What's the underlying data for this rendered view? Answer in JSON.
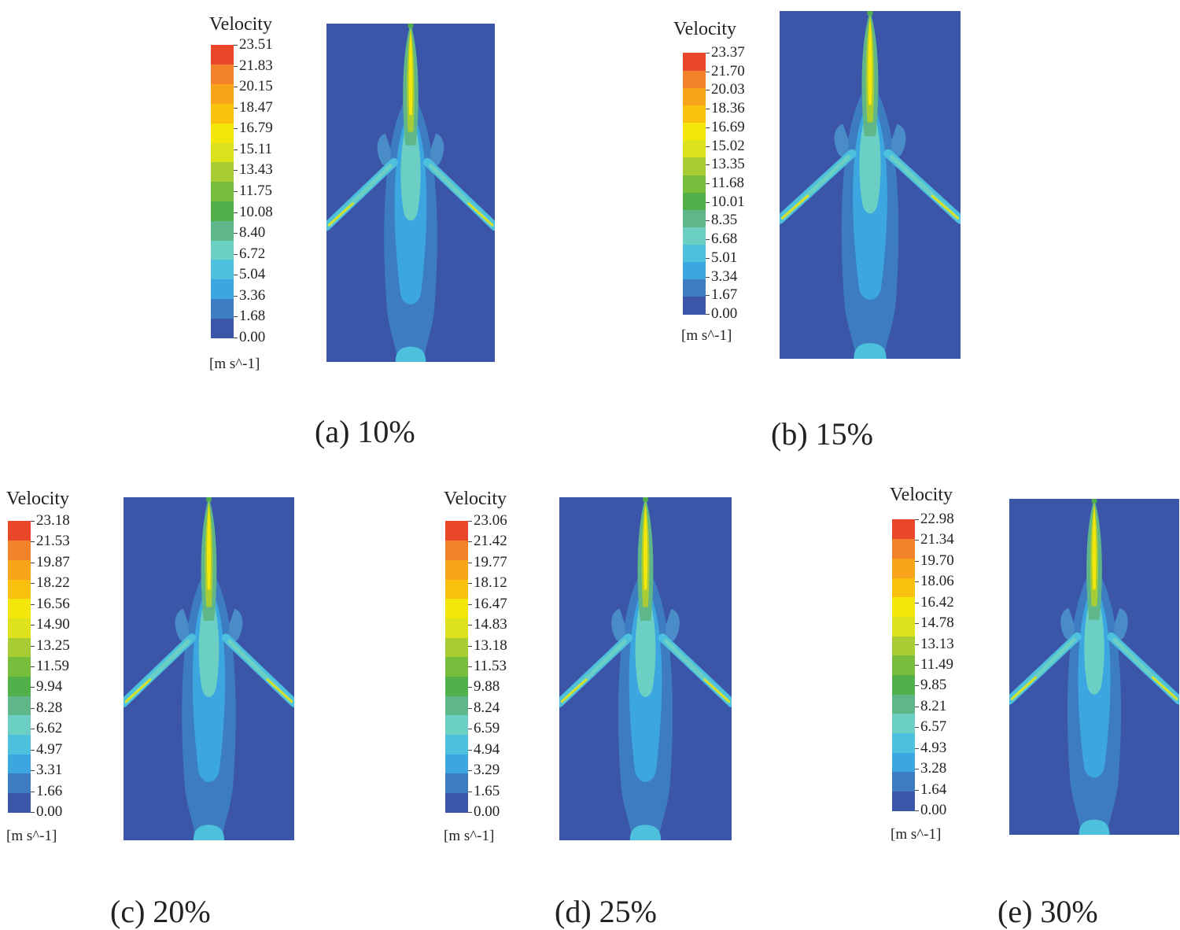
{
  "legend_title": "Velocity",
  "unit_label": "[m s^-1]",
  "colormap": [
    "#3b55a8",
    "#3e7cc1",
    "#3ba6e0",
    "#4cc0dc",
    "#6ccfc4",
    "#5fb689",
    "#52b04a",
    "#78bd3c",
    "#a8cc33",
    "#dde21d",
    "#f3e60a",
    "#f9c10d",
    "#f8a51b",
    "#f4822a",
    "#e9462b"
  ],
  "panels": [
    {
      "caption": "(a) 10%",
      "ticks": [
        "23.51",
        "21.83",
        "20.15",
        "18.47",
        "16.79",
        "15.11",
        "13.43",
        "11.75",
        "10.08",
        "8.40",
        "6.72",
        "5.04",
        "3.36",
        "1.68",
        "0.00"
      ]
    },
    {
      "caption": "(b) 15%",
      "ticks": [
        "23.37",
        "21.70",
        "20.03",
        "18.36",
        "16.69",
        "15.02",
        "13.35",
        "11.68",
        "10.01",
        "8.35",
        "6.68",
        "5.01",
        "3.34",
        "1.67",
        "0.00"
      ]
    },
    {
      "caption": "(c) 20%",
      "ticks": [
        "23.18",
        "21.53",
        "19.87",
        "18.22",
        "16.56",
        "14.90",
        "13.25",
        "11.59",
        "9.94",
        "8.28",
        "6.62",
        "4.97",
        "3.31",
        "1.66",
        "0.00"
      ]
    },
    {
      "caption": "(d) 25%",
      "ticks": [
        "23.06",
        "21.42",
        "19.77",
        "18.12",
        "16.47",
        "14.83",
        "13.18",
        "11.53",
        "9.88",
        "8.24",
        "6.59",
        "4.94",
        "3.29",
        "1.65",
        "0.00"
      ]
    },
    {
      "caption": "(e) 30%",
      "ticks": [
        "22.98",
        "21.34",
        "19.70",
        "18.06",
        "16.42",
        "14.78",
        "13.13",
        "11.49",
        "9.85",
        "8.21",
        "6.57",
        "4.93",
        "3.28",
        "1.64",
        "0.00"
      ]
    }
  ]
}
